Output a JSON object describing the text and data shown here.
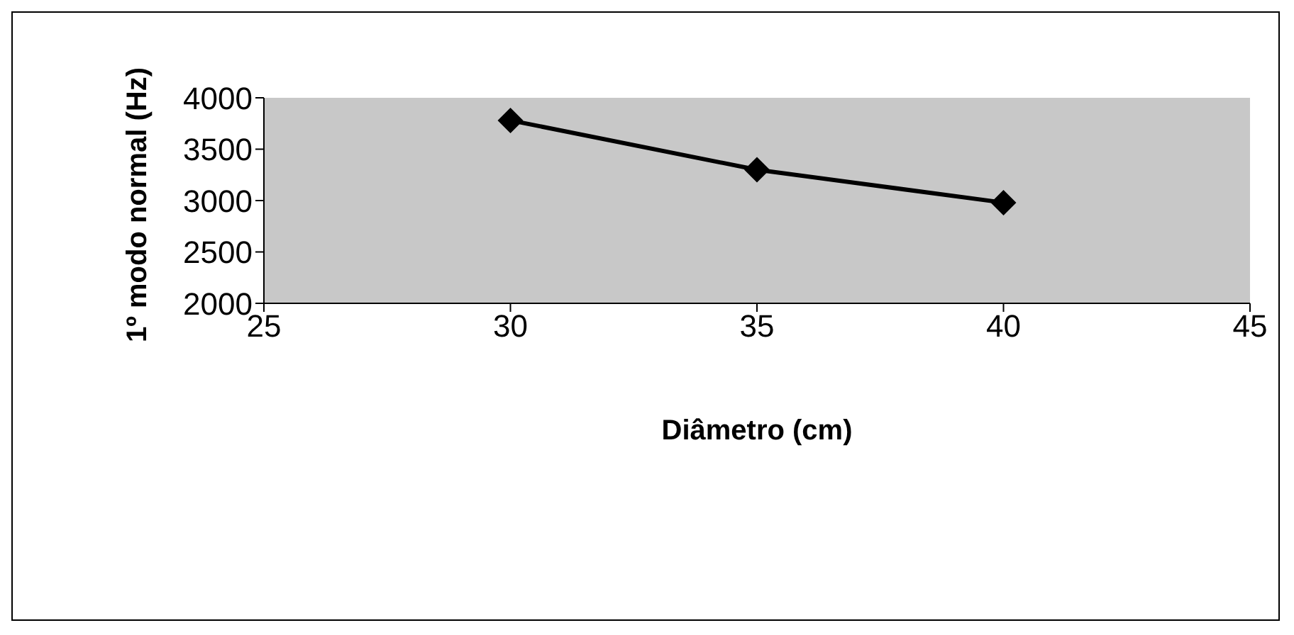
{
  "chart_data": {
    "type": "line",
    "xlabel": "Diâmetro (cm)",
    "ylabel": "1º modo normal (Hz)",
    "x": [
      30,
      35,
      40
    ],
    "series": [
      {
        "color": "#000000",
        "values": [
          3780,
          3300,
          2980
        ]
      }
    ],
    "xlim": [
      25,
      45
    ],
    "xticks": [
      25,
      30,
      35,
      40,
      45
    ],
    "ylim": [
      2000,
      4000
    ],
    "yticks": [
      2000,
      2500,
      3000,
      3500,
      4000
    ],
    "marker": "diamond",
    "line_style": "solid",
    "grid": false,
    "legend": false
  }
}
